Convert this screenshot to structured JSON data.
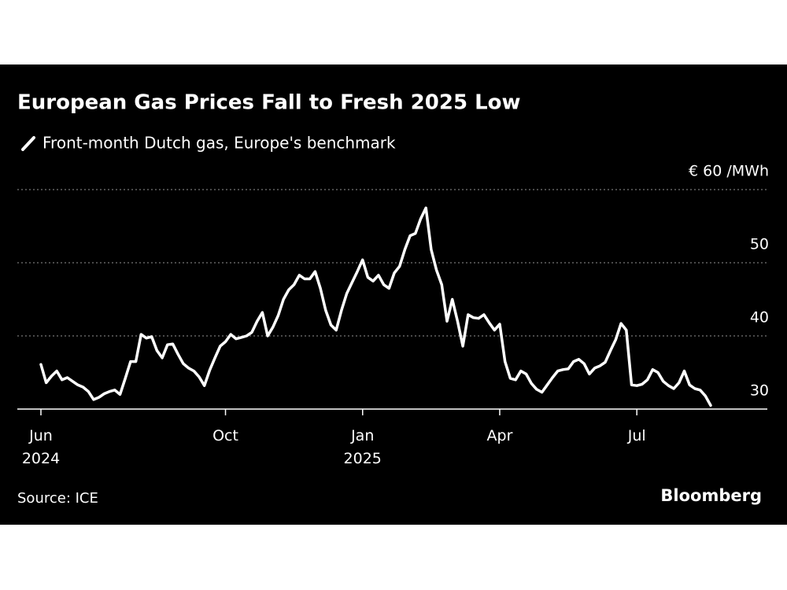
{
  "chart_data": {
    "type": "line",
    "title": "European Gas Prices Fall to Fresh 2025 Low",
    "source": "Source: ICE",
    "brand": "Bloomberg",
    "categories": [
      "Jun 2024",
      null,
      null,
      null,
      null,
      null,
      null,
      null,
      null,
      null,
      null,
      null,
      null,
      null,
      null,
      null,
      null,
      null,
      null,
      null,
      null,
      null,
      null,
      null,
      null,
      null,
      null,
      null,
      null,
      null,
      null,
      null,
      null,
      null,
      null,
      "Oct",
      null,
      null,
      null,
      null,
      null,
      null,
      null,
      null,
      null,
      null,
      null,
      null,
      null,
      null,
      null,
      null,
      null,
      null,
      null,
      null,
      null,
      null,
      null,
      null,
      null,
      "Jan 2025",
      null,
      null,
      null,
      null,
      null,
      null,
      null,
      null,
      null,
      null,
      null,
      null,
      null,
      null,
      null,
      null,
      null,
      null,
      null,
      null,
      null,
      null,
      null,
      null,
      null,
      "Apr",
      null,
      null,
      null,
      null,
      null,
      null,
      null,
      null,
      null,
      null,
      null,
      null,
      null,
      null,
      null,
      null,
      null,
      null,
      null,
      null,
      null,
      null,
      null,
      null,
      null,
      "Jul",
      null,
      null,
      null,
      null,
      null,
      null,
      null,
      null,
      null,
      null,
      null,
      null,
      null,
      null
    ],
    "series": [
      {
        "name": "Front-month Dutch gas, Europe's benchmark",
        "color": "#ffffff",
        "values": [
          36.1,
          33.6,
          34.5,
          35.2,
          34,
          34.3,
          33.8,
          33.3,
          33,
          32.4,
          31.3,
          31.6,
          32.1,
          32.4,
          32.6,
          32,
          34.2,
          36.5,
          36.5,
          40.2,
          39.7,
          39.9,
          38,
          37,
          38.8,
          38.9,
          37.5,
          36.2,
          35.6,
          35.2,
          34.4,
          33.2,
          35.3,
          37,
          38.6,
          39.2,
          40.2,
          39.6,
          39.8,
          40,
          40.5,
          42,
          43.2,
          40,
          41.2,
          42.8,
          45,
          46.3,
          47,
          48.3,
          47.8,
          47.8,
          48.8,
          46.5,
          43.5,
          41.5,
          40.8,
          43.5,
          45.8,
          47.3,
          48.8,
          50.4,
          48,
          47.5,
          48.3,
          47,
          46.5,
          48.6,
          49.5,
          51.8,
          53.7,
          54,
          56,
          57.5,
          51.8,
          49,
          47,
          42,
          45,
          42,
          38.6,
          42.9,
          42.5,
          42.4,
          42.9,
          41.8,
          40.8,
          41.6,
          36.5,
          34.2,
          34,
          35.2,
          34.8,
          33.5,
          32.7,
          32.3,
          33.3,
          34.3,
          35.2,
          35.4,
          35.5,
          36.5,
          36.8,
          36.2,
          34.8,
          35.6,
          35.9,
          36.4,
          38,
          39.5,
          41.7,
          40.8,
          33.3,
          33.2,
          33.4,
          34,
          35.4,
          35,
          33.8,
          33.2,
          32.8,
          33.6,
          35.2,
          33.3,
          32.8,
          32.6,
          31.8,
          30.5
        ]
      }
    ],
    "ylim": [
      30,
      60
    ],
    "yticks": [
      30,
      40,
      50,
      {
        "value": 60,
        "label": "€ 60 /MWh"
      }
    ],
    "grid": true
  }
}
